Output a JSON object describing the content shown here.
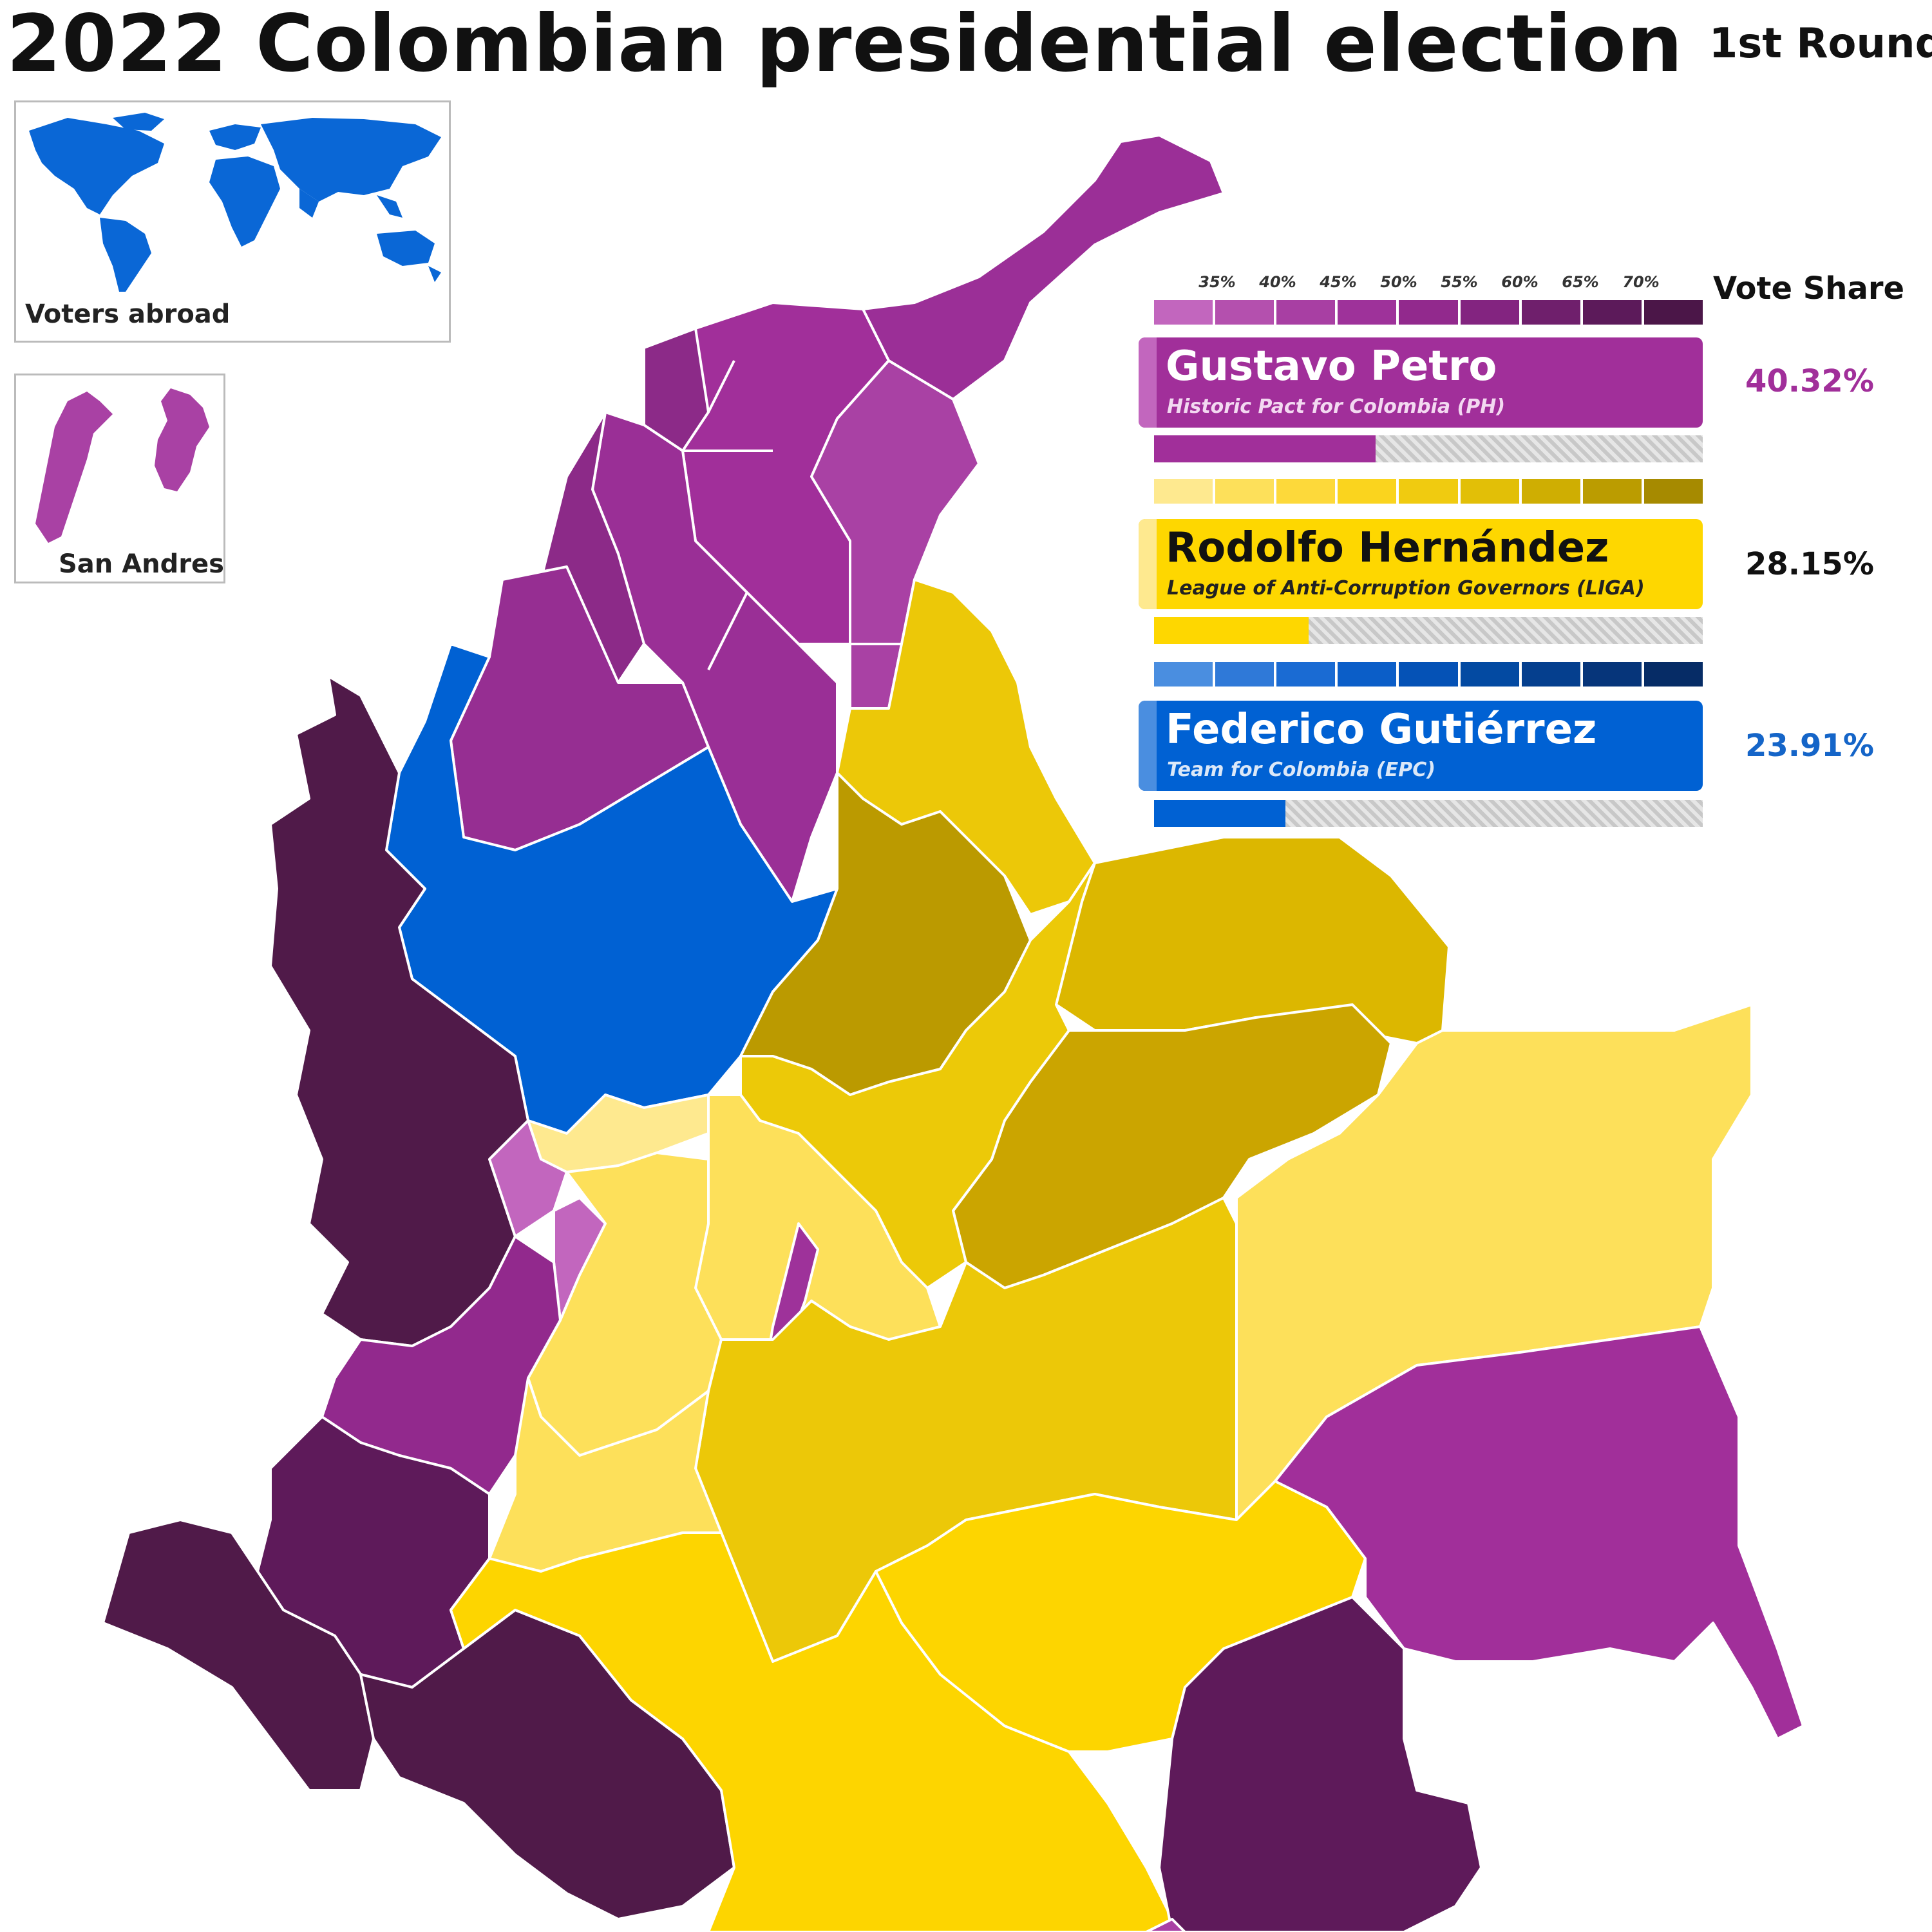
{
  "title": "2022 Colombian presidential election",
  "subtitle": "1st Round",
  "insets": {
    "abroad_label": "Voters abroad",
    "san_andres_label": "San Andres"
  },
  "legend": {
    "title": "Vote Share",
    "ticks": [
      "35%",
      "40%",
      "45%",
      "50%",
      "55%",
      "60%",
      "65%",
      "70%"
    ]
  },
  "candidates": [
    {
      "name": "Gustavo Petro",
      "party": "Historic Pact for Colombia (PH)",
      "share_label": "40.32%",
      "share": 40.32,
      "color": "#a12f9a",
      "label_color": "#a12f9a",
      "ramp": [
        "#c266be",
        "#b450ae",
        "#a83fa3",
        "#9e329a",
        "#92298d",
        "#832480",
        "#6f1f6c",
        "#5c1a5a",
        "#4b1648"
      ]
    },
    {
      "name": "Rodolfo Hernández",
      "party": "League of Anti-Corruption Governors (LIGA)",
      "share_label": "28.15%",
      "share": 28.15,
      "color": "#fed700",
      "label_color": "#111111",
      "ramp": [
        "#fee98f",
        "#fde05a",
        "#fdd93a",
        "#fad41e",
        "#f0cb10",
        "#e2bf07",
        "#cfae02",
        "#bb9c00",
        "#a68a00"
      ]
    },
    {
      "name": "Federico Gutiérrez",
      "party": "Team for Colombia (EPC)",
      "share_label": "23.91%",
      "share": 23.91,
      "color": "#0061d3",
      "label_color": "#1565c8",
      "ramp": [
        "#4a8ee0",
        "#2f79d8",
        "#1a6bd3",
        "#0b5ec8",
        "#0552b6",
        "#034aa2",
        "#053f8e",
        "#06357a",
        "#062c66"
      ]
    }
  ]
}
